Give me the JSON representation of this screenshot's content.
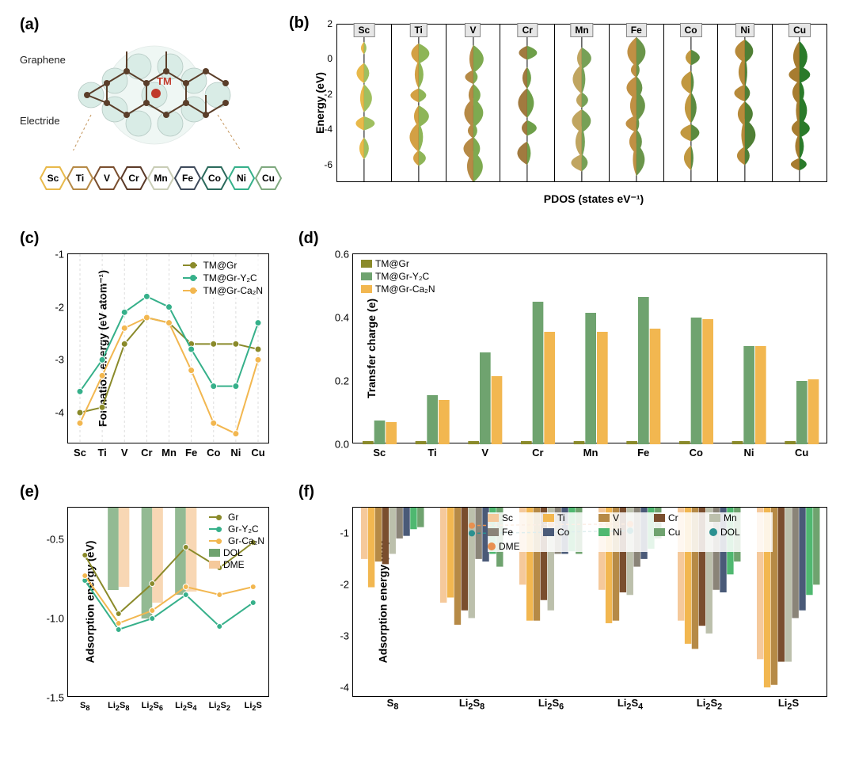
{
  "panel_a": {
    "label": "(a)",
    "annotations": {
      "top": "Graphene",
      "bottom": "Electride",
      "center": "TM"
    },
    "elements": [
      {
        "sym": "Sc",
        "color": "#e8b94a"
      },
      {
        "sym": "Ti",
        "color": "#b68a46"
      },
      {
        "sym": "V",
        "color": "#7a4e2e"
      },
      {
        "sym": "Cr",
        "color": "#5b3a28"
      },
      {
        "sym": "Mn",
        "color": "#c9cdb6"
      },
      {
        "sym": "Fe",
        "color": "#3e4a5b"
      },
      {
        "sym": "Co",
        "color": "#2b6a5c"
      },
      {
        "sym": "Ni",
        "color": "#36b08a"
      },
      {
        "sym": "Cu",
        "color": "#7fa97f"
      }
    ]
  },
  "panel_b": {
    "label": "(b)",
    "y_label": "Energy (eV)",
    "x_label": "PDOS (states eV⁻¹)",
    "y_ticks": [
      2,
      0,
      -2,
      -4,
      -6
    ],
    "cols": [
      {
        "el": "Sc",
        "left_color": "#e8b94a",
        "right_color": "#9fbf5f"
      },
      {
        "el": "Ti",
        "left_color": "#d3a044",
        "right_color": "#8eb557"
      },
      {
        "el": "V",
        "left_color": "#b68a46",
        "right_color": "#7eaa50"
      },
      {
        "el": "Cr",
        "left_color": "#a17a3f",
        "right_color": "#6e9f49"
      },
      {
        "el": "Mn",
        "left_color": "#c0a560",
        "right_color": "#77a056"
      },
      {
        "el": "Fe",
        "left_color": "#c09044",
        "right_color": "#6a954a"
      },
      {
        "el": "Co",
        "left_color": "#c19840",
        "right_color": "#5c8a3f"
      },
      {
        "el": "Ni",
        "left_color": "#b78a3a",
        "right_color": "#4f7f35"
      },
      {
        "el": "Cu",
        "left_color": "#a77c30",
        "right_color": "#2a7a2a"
      }
    ]
  },
  "panel_c": {
    "label": "(c)",
    "y_label": "Formation energy (eV atom⁻¹)",
    "y_ticks": [
      -1,
      -2,
      -3,
      -4
    ],
    "x": [
      "Sc",
      "Ti",
      "V",
      "Cr",
      "Mn",
      "Fe",
      "Co",
      "Ni",
      "Cu"
    ],
    "legend": [
      {
        "name": "TM@Gr",
        "color": "#8a8a2a"
      },
      {
        "name": "TM@Gr-Y₂C",
        "color": "#36b08a"
      },
      {
        "name": "TM@Gr-Ca₂N",
        "color": "#f2b750"
      }
    ],
    "series": [
      {
        "key": "gr",
        "color": "#8a8a2a",
        "values": [
          -4.0,
          -3.9,
          -2.7,
          -2.2,
          -2.3,
          -2.7,
          -2.7,
          -2.7,
          -2.8
        ]
      },
      {
        "key": "y2c",
        "color": "#36b08a",
        "values": [
          -3.6,
          -3.0,
          -2.1,
          -1.8,
          -2.0,
          -2.8,
          -3.5,
          -3.5,
          -2.3
        ]
      },
      {
        "key": "ca2n",
        "color": "#f2b750",
        "values": [
          -4.2,
          -3.3,
          -2.4,
          -2.2,
          -2.3,
          -3.2,
          -4.2,
          -4.4,
          -3.0
        ]
      }
    ]
  },
  "panel_d": {
    "label": "(d)",
    "y_label": "Transfer charge (e)",
    "y_ticks": [
      0.0,
      0.2,
      0.4,
      0.6
    ],
    "x": [
      "Sc",
      "Ti",
      "V",
      "Cr",
      "Mn",
      "Fe",
      "Co",
      "Ni",
      "Cu"
    ],
    "legend": [
      {
        "name": "TM@Gr",
        "color": "#8a8a2a",
        "type": "bar"
      },
      {
        "name": "TM@Gr-Y₂C",
        "color": "#6fa36f",
        "type": "bar"
      },
      {
        "name": "TM@Gr-Ca₂N",
        "color": "#f2b750",
        "type": "bar"
      }
    ],
    "series": [
      {
        "key": "gr",
        "color": "#8a8a2a",
        "values": [
          0.01,
          0.01,
          0.01,
          0.01,
          0.01,
          0.01,
          0.01,
          0.01,
          0.01
        ]
      },
      {
        "key": "y2c",
        "color": "#6fa36f",
        "values": [
          0.075,
          0.155,
          0.29,
          0.45,
          0.415,
          0.465,
          0.4,
          0.31,
          0.2
        ]
      },
      {
        "key": "ca2n",
        "color": "#f2b750",
        "values": [
          0.07,
          0.14,
          0.215,
          0.355,
          0.355,
          0.365,
          0.395,
          0.31,
          0.205
        ]
      }
    ]
  },
  "panel_e": {
    "label": "(e)",
    "y_label": "Adsorption energy (eV)",
    "y_ticks": [
      -1.5,
      -1.0,
      -0.5
    ],
    "x": [
      "S₈",
      "Li₂S₈",
      "Li₂S₆",
      "Li₂S₄",
      "Li₂S₂",
      "Li₂S"
    ],
    "legend_lines": [
      {
        "name": "Gr",
        "color": "#8a8a2a"
      },
      {
        "name": "Gr-Y₂C",
        "color": "#36b08a"
      },
      {
        "name": "Gr-Ca₂N",
        "color": "#f2b750"
      }
    ],
    "legend_bars": [
      {
        "name": "DOL",
        "color": "#6fa36f"
      },
      {
        "name": "DME",
        "color": "#f5c99b"
      }
    ],
    "bars": {
      "DOL": {
        "color": "#6fa36f",
        "values": [
          0,
          -0.82,
          -1.0,
          -0.85,
          0,
          0
        ]
      },
      "DME": {
        "color": "#f5c99b",
        "values": [
          0,
          -0.8,
          -0.9,
          -0.83,
          0,
          0
        ]
      }
    },
    "series": [
      {
        "key": "gr",
        "color": "#8a8a2a",
        "values": [
          -0.6,
          -0.97,
          -0.78,
          -0.55,
          -0.68,
          -0.52
        ]
      },
      {
        "key": "y2c",
        "color": "#36b08a",
        "values": [
          -0.76,
          -1.07,
          -1.0,
          -0.85,
          -1.05,
          -0.9
        ]
      },
      {
        "key": "ca2n",
        "color": "#f2b750",
        "values": [
          -0.73,
          -1.03,
          -0.95,
          -0.8,
          -0.85,
          -0.8
        ]
      }
    ]
  },
  "panel_f": {
    "label": "(f)",
    "y_label": "Adsorption energy (eV)",
    "y_ticks": [
      -4,
      -3,
      -2,
      -1
    ],
    "x": [
      "S₈",
      "Li₂S₈",
      "Li₂S₆",
      "Li₂S₄",
      "Li₂S₂",
      "Li₂S"
    ],
    "legend": [
      {
        "name": "Sc",
        "color": "#f5c99b"
      },
      {
        "name": "Ti",
        "color": "#f2b750"
      },
      {
        "name": "V",
        "color": "#b68a46"
      },
      {
        "name": "Cr",
        "color": "#7a4e2e"
      },
      {
        "name": "Mn",
        "color": "#bcc0ac"
      },
      {
        "name": "Fe",
        "color": "#8a8478"
      },
      {
        "name": "Co",
        "color": "#4a5a78"
      },
      {
        "name": "Ni",
        "color": "#4fb870"
      },
      {
        "name": "Cu",
        "color": "#6fa36f"
      }
    ],
    "legend_markers": [
      {
        "name": "DOL",
        "color": "#2b9090"
      },
      {
        "name": "DME",
        "color": "#e89050"
      }
    ],
    "dol": {
      "color": "#2b9090",
      "values": [
        null,
        -1.0,
        -0.98,
        -0.95,
        null,
        null
      ]
    },
    "dme": {
      "color": "#e89050",
      "values": [
        null,
        -0.85,
        -0.83,
        -0.82,
        null,
        null
      ]
    },
    "data": [
      [
        -1.5,
        -2.05,
        -1.55,
        -1.6,
        -1.4,
        -1.1,
        -1.05,
        -0.92,
        -0.88
      ],
      [
        -2.35,
        -2.25,
        -2.78,
        -2.5,
        -2.65,
        -1.5,
        -1.55,
        -1.4,
        -1.65
      ],
      [
        -2.0,
        -2.7,
        -2.7,
        -2.3,
        -2.5,
        -1.4,
        -1.4,
        -1.35,
        -1.4
      ],
      [
        -2.1,
        -2.75,
        -2.7,
        -2.15,
        -2.2,
        -1.65,
        -1.5,
        -1.3,
        -1.1
      ],
      [
        -2.7,
        -3.15,
        -3.25,
        -2.8,
        -2.95,
        -2.1,
        -2.15,
        -1.8,
        -1.55
      ],
      [
        -3.45,
        -4.0,
        -3.95,
        -3.5,
        -3.5,
        -2.65,
        -2.5,
        -2.2,
        -2.0
      ]
    ]
  }
}
